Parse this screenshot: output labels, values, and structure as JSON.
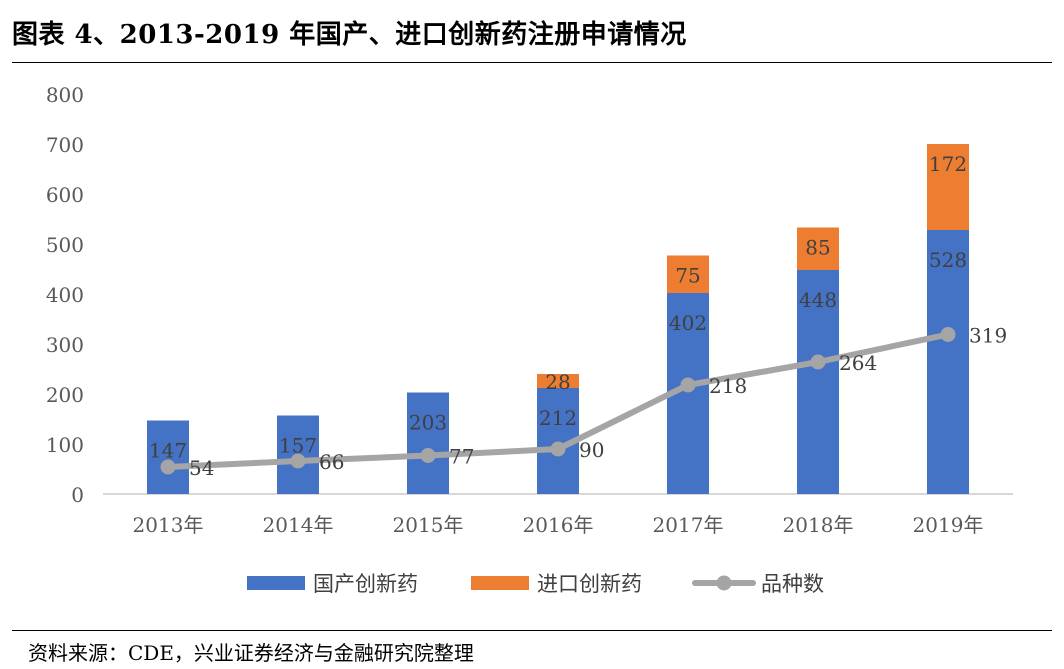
{
  "figure": {
    "title": "图表 4、2013-2019 年国产、进口创新药注册申请情况",
    "source": "资料来源：CDE，兴业证券经济与金融研究院整理"
  },
  "chart_data": {
    "type": "bar",
    "stacked": true,
    "categories": [
      "2013年",
      "2014年",
      "2015年",
      "2016年",
      "2017年",
      "2018年",
      "2019年"
    ],
    "series": [
      {
        "name": "国产创新药",
        "type": "bar",
        "color": "#4472C4",
        "values": [
          147,
          157,
          203,
          212,
          402,
          448,
          528
        ]
      },
      {
        "name": "进口创新药",
        "type": "bar",
        "color": "#ED7D31",
        "values": [
          0,
          0,
          0,
          28,
          75,
          85,
          172
        ]
      },
      {
        "name": "品种数",
        "type": "line",
        "color": "#A5A5A5",
        "values": [
          54,
          66,
          77,
          90,
          218,
          264,
          319
        ]
      }
    ],
    "y_ticks": [
      0,
      100,
      200,
      300,
      400,
      500,
      600,
      700,
      800
    ],
    "ylim": [
      0,
      800
    ],
    "legend": "bottom",
    "grid": false
  }
}
